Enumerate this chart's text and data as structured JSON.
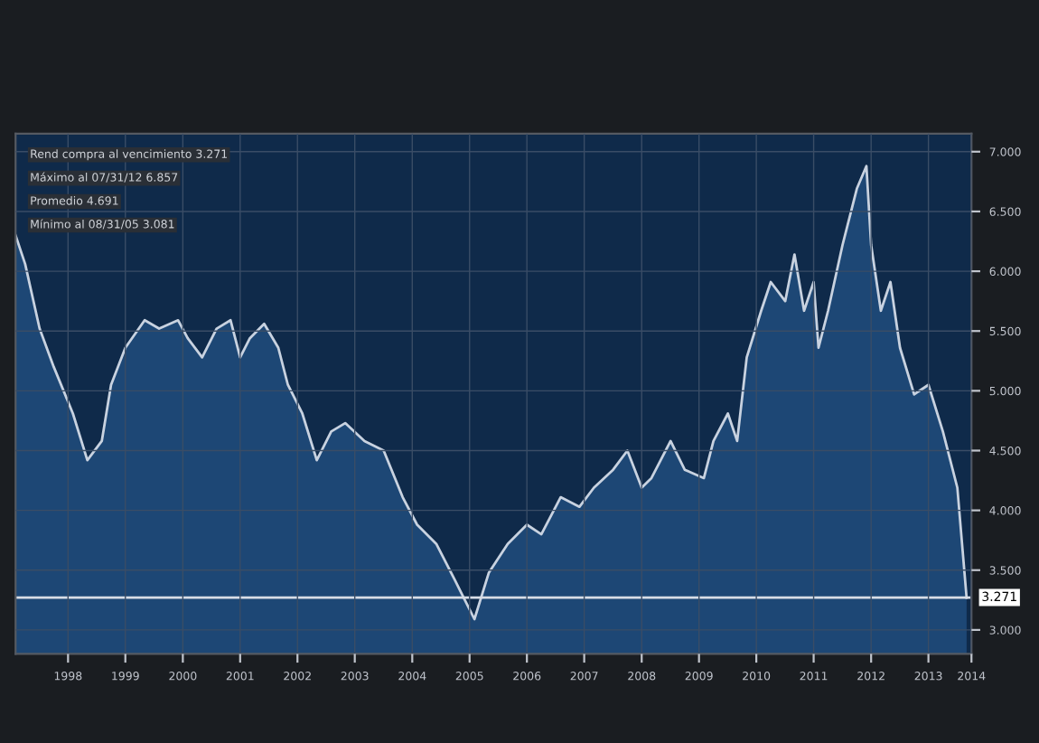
{
  "chart_data": {
    "type": "area",
    "x": [
      "1997-08",
      "1997-10",
      "1998-01",
      "1998-04",
      "1998-08",
      "1998-11",
      "1999-02",
      "1999-04",
      "1999-07",
      "1999-11",
      "2000-02",
      "2000-06",
      "2000-08",
      "2000-11",
      "2001-02",
      "2001-05",
      "2001-07",
      "2001-09",
      "2001-12",
      "2002-03",
      "2002-05",
      "2002-08",
      "2002-11",
      "2003-02",
      "2003-05",
      "2003-09",
      "2004-01",
      "2004-05",
      "2004-08",
      "2004-12",
      "2005-04",
      "2005-06",
      "2005-08",
      "2005-11",
      "2006-03",
      "2006-07",
      "2006-10",
      "2007-02",
      "2007-06",
      "2007-09",
      "2008-01",
      "2008-04",
      "2008-07",
      "2008-09",
      "2009-01",
      "2009-04",
      "2009-08",
      "2009-10",
      "2010-01",
      "2010-03",
      "2010-05",
      "2010-08",
      "2010-10",
      "2011-01",
      "2011-03",
      "2011-05",
      "2011-07",
      "2011-08",
      "2011-10",
      "2012-01",
      "2012-04",
      "2012-06",
      "2012-07",
      "2012-09",
      "2012-11",
      "2013-01",
      "2013-04",
      "2013-07",
      "2013-10",
      "2014-01",
      "2014-03"
    ],
    "series": [
      {
        "color": "#c8d2e0",
        "values": [
          6.3,
          6.06,
          5.52,
          5.2,
          4.81,
          4.42,
          4.58,
          5.05,
          5.36,
          5.59,
          5.52,
          5.59,
          5.44,
          5.28,
          5.52,
          5.59,
          5.28,
          5.44,
          5.56,
          5.36,
          5.05,
          4.81,
          4.42,
          4.66,
          4.73,
          4.58,
          4.5,
          4.11,
          3.88,
          3.72,
          3.41,
          3.25,
          3.09,
          3.48,
          3.72,
          3.88,
          3.8,
          4.11,
          4.03,
          4.19,
          4.34,
          4.5,
          4.19,
          4.27,
          4.58,
          4.34,
          4.27,
          4.58,
          4.81,
          4.58,
          5.28,
          5.67,
          5.91,
          5.75,
          6.14,
          5.67,
          5.91,
          5.36,
          5.67,
          6.22,
          6.69,
          6.88,
          6.22,
          5.67,
          5.91,
          5.36,
          4.97,
          5.05,
          4.66,
          4.19,
          3.27
        ]
      }
    ],
    "xlim": [
      "1997-08",
      "2014-04"
    ],
    "xticks": [
      {
        "value": "1998-07",
        "label": "1998"
      },
      {
        "value": "1999-07",
        "label": "1999"
      },
      {
        "value": "2000-07",
        "label": "2000"
      },
      {
        "value": "2001-07",
        "label": "2001"
      },
      {
        "value": "2002-07",
        "label": "2002"
      },
      {
        "value": "2003-07",
        "label": "2003"
      },
      {
        "value": "2004-07",
        "label": "2004"
      },
      {
        "value": "2005-07",
        "label": "2005"
      },
      {
        "value": "2006-07",
        "label": "2006"
      },
      {
        "value": "2007-07",
        "label": "2007"
      },
      {
        "value": "2008-07",
        "label": "2008"
      },
      {
        "value": "2009-07",
        "label": "2009"
      },
      {
        "value": "2010-07",
        "label": "2010"
      },
      {
        "value": "2011-07",
        "label": "2011"
      },
      {
        "value": "2012-07",
        "label": "2012"
      },
      {
        "value": "2013-07",
        "label": "2013"
      },
      {
        "value": "2014-04",
        "label": "2014"
      }
    ],
    "ylim": [
      2.8,
      7.15
    ],
    "yticks": [
      {
        "value": 3,
        "label": "3.000"
      },
      {
        "value": 3.5,
        "label": "3.500"
      },
      {
        "value": 4,
        "label": "4.000"
      },
      {
        "value": 4.5,
        "label": "4.500"
      },
      {
        "value": 5,
        "label": "5.000"
      },
      {
        "value": 5.5,
        "label": "5.500"
      },
      {
        "value": 6,
        "label": "6.000"
      },
      {
        "value": 6.5,
        "label": "6.500"
      },
      {
        "value": 7,
        "label": "7.000"
      }
    ],
    "ref_lines": [
      {
        "axis": "y",
        "value": 3.271,
        "label": "3.271",
        "color": "#d8dde6"
      }
    ],
    "annotations": [
      "Rend compra al vencimiento 3.271",
      "Máximo al 07/31/12 6.857",
      "Promedio 4.691",
      "Mínimo al 08/31/05 3.081"
    ],
    "grid": true
  }
}
